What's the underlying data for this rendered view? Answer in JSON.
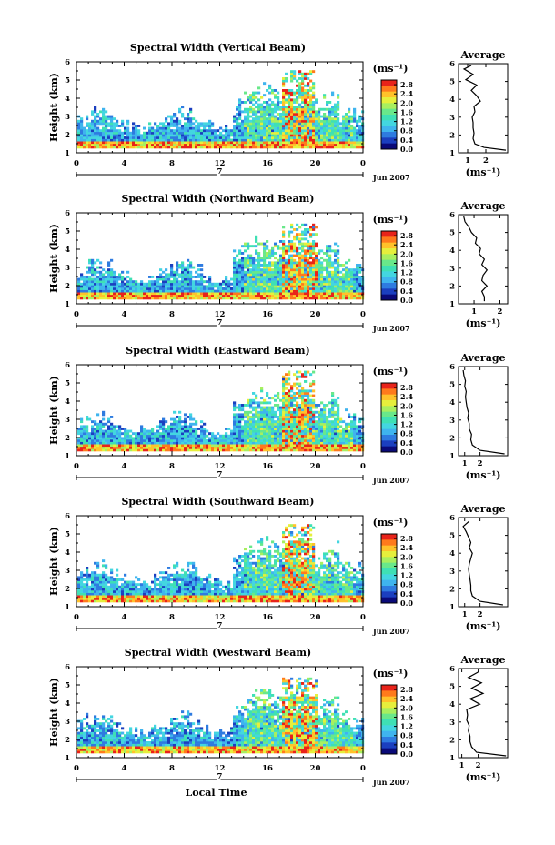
{
  "figure": {
    "xlabel": "Local Time",
    "ylabel": "Height (km)",
    "date_label": "Jun 2007",
    "day_label": "7",
    "colorbar_unit": "(ms⁻¹)",
    "avg_title": "Average",
    "avg_xlabel": "(ms⁻¹)",
    "colormap": [
      "#0a0a78",
      "#1b3fbf",
      "#2e7be0",
      "#3fb4ee",
      "#43d6e0",
      "#3fe0b4",
      "#69e88a",
      "#a8ef5f",
      "#e6ef3c",
      "#ffc22a",
      "#ff7a1c",
      "#e8231a"
    ]
  },
  "chart_data": [
    {
      "type": "heatmap",
      "title": "Spectral Width (Vertical Beam)",
      "xlabel": "",
      "ylabel": "Height (km)",
      "x_ticks": [
        "0",
        "4",
        "8",
        "12",
        "16",
        "20",
        "0"
      ],
      "xlim": [
        0,
        24
      ],
      "y_ticks": [
        "1",
        "2",
        "3",
        "4",
        "5",
        "6"
      ],
      "ylim": [
        1,
        6
      ],
      "colorbar": {
        "ticks": [
          "0.0",
          "0.4",
          "0.8",
          "1.2",
          "1.6",
          "2.0",
          "2.4",
          "2.8"
        ],
        "range": [
          0,
          3.0
        ]
      },
      "average": {
        "title": "Average",
        "xlabel": "(ms⁻¹)",
        "x_ticks": [
          "1",
          "2"
        ],
        "xlim": [
          0.5,
          3.2
        ],
        "y": [
          1.15,
          1.3,
          1.5,
          1.8,
          2.1,
          2.4,
          2.7,
          3.0,
          3.3,
          3.6,
          3.9,
          4.2,
          4.5,
          4.8,
          5.1,
          5.4,
          5.7,
          5.9
        ],
        "x": [
          3.1,
          1.9,
          1.4,
          1.3,
          1.35,
          1.3,
          1.3,
          1.25,
          1.4,
          1.35,
          1.7,
          1.5,
          1.2,
          1.5,
          0.9,
          1.3,
          0.8,
          1.2
        ]
      },
      "top_height": 5.5,
      "spike_x": 18.5
    },
    {
      "type": "heatmap",
      "title": "Spectral Width (Northward Beam)",
      "xlabel": "",
      "ylabel": "Height (km)",
      "x_ticks": [
        "0",
        "4",
        "8",
        "12",
        "16",
        "20",
        "0"
      ],
      "xlim": [
        0,
        24
      ],
      "y_ticks": [
        "1",
        "2",
        "3",
        "4",
        "5",
        "6"
      ],
      "ylim": [
        1,
        6
      ],
      "colorbar": {
        "ticks": [
          "0.0",
          "0.4",
          "0.8",
          "1.2",
          "1.6",
          "2.0",
          "2.4",
          "2.8"
        ],
        "range": [
          0,
          3.0
        ]
      },
      "average": {
        "title": "Average",
        "xlabel": "(ms⁻¹)",
        "x_ticks": [
          "1",
          "2"
        ],
        "xlim": [
          0.4,
          2.3
        ],
        "y": [
          1.15,
          1.4,
          1.7,
          2.0,
          2.3,
          2.6,
          2.9,
          3.2,
          3.5,
          3.8,
          4.1,
          4.4,
          4.7,
          5.0,
          5.3,
          5.6,
          5.9
        ],
        "x": [
          1.4,
          1.4,
          1.3,
          1.5,
          1.3,
          1.35,
          1.5,
          1.3,
          1.4,
          1.2,
          1.25,
          1.05,
          1.1,
          0.9,
          0.8,
          0.65,
          0.6
        ]
      },
      "top_height": 5.3,
      "spike_x": 18.6
    },
    {
      "type": "heatmap",
      "title": "Spectral Width (Eastward Beam)",
      "xlabel": "",
      "ylabel": "Height (km)",
      "x_ticks": [
        "0",
        "4",
        "8",
        "12",
        "16",
        "20",
        "0"
      ],
      "xlim": [
        0,
        24
      ],
      "y_ticks": [
        "1",
        "2",
        "3",
        "4",
        "5",
        "6"
      ],
      "ylim": [
        1,
        6
      ],
      "colorbar": {
        "ticks": [
          "0.0",
          "0.4",
          "0.8",
          "1.2",
          "1.6",
          "2.0",
          "2.4",
          "2.8"
        ],
        "range": [
          0,
          3.0
        ]
      },
      "average": {
        "title": "Average",
        "xlabel": "(ms⁻¹)",
        "x_ticks": [
          "1",
          "2"
        ],
        "xlim": [
          0.6,
          3.8
        ],
        "y": [
          1.1,
          1.3,
          1.6,
          1.9,
          2.2,
          2.5,
          2.8,
          3.1,
          3.4,
          3.7,
          4.0,
          4.3,
          4.6,
          4.9,
          5.2,
          5.5,
          5.8
        ],
        "x": [
          3.6,
          2.0,
          1.5,
          1.4,
          1.45,
          1.3,
          1.3,
          1.2,
          1.25,
          1.15,
          1.1,
          1.05,
          1.1,
          1.0,
          1.05,
          0.95,
          0.9
        ]
      },
      "top_height": 5.6,
      "spike_x": 18.5
    },
    {
      "type": "heatmap",
      "title": "Spectral Width (Southward Beam)",
      "xlabel": "",
      "ylabel": "Height (km)",
      "x_ticks": [
        "0",
        "4",
        "8",
        "12",
        "16",
        "20",
        "0"
      ],
      "xlim": [
        0,
        24
      ],
      "y_ticks": [
        "1",
        "2",
        "3",
        "4",
        "5",
        "6"
      ],
      "ylim": [
        1,
        6
      ],
      "colorbar": {
        "ticks": [
          "0.0",
          "0.4",
          "0.8",
          "1.2",
          "1.6",
          "2.0",
          "2.4",
          "2.8"
        ],
        "range": [
          0,
          3.0
        ]
      },
      "average": {
        "title": "Average",
        "xlabel": "(ms⁻¹)",
        "x_ticks": [
          "1",
          "2"
        ],
        "xlim": [
          0.6,
          3.8
        ],
        "y": [
          1.1,
          1.3,
          1.6,
          1.9,
          2.2,
          2.5,
          2.8,
          3.1,
          3.4,
          3.7,
          4.0,
          4.3,
          4.6,
          4.9,
          5.2,
          5.5,
          5.8
        ],
        "x": [
          3.5,
          2.0,
          1.5,
          1.4,
          1.4,
          1.35,
          1.3,
          1.25,
          1.3,
          1.4,
          1.5,
          1.3,
          1.4,
          1.25,
          1.1,
          0.9,
          1.3
        ]
      },
      "top_height": 5.5,
      "spike_x": 18.5
    },
    {
      "type": "heatmap",
      "title": "Spectral Width (Westward Beam)",
      "xlabel": "Local Time",
      "ylabel": "Height (km)",
      "x_ticks": [
        "0",
        "4",
        "8",
        "12",
        "16",
        "20",
        "0"
      ],
      "xlim": [
        0,
        24
      ],
      "y_ticks": [
        "1",
        "2",
        "3",
        "4",
        "5",
        "6"
      ],
      "ylim": [
        1,
        6
      ],
      "colorbar": {
        "ticks": [
          "0.0",
          "0.4",
          "0.8",
          "1.2",
          "1.6",
          "2.0",
          "2.4",
          "2.8"
        ],
        "range": [
          0,
          3.0
        ]
      },
      "average": {
        "title": "Average",
        "xlabel": "(ms⁻¹)",
        "x_ticks": [
          "1",
          "2"
        ],
        "xlim": [
          0.8,
          3.8
        ],
        "y": [
          1.1,
          1.3,
          1.6,
          1.9,
          2.2,
          2.5,
          2.8,
          3.1,
          3.4,
          3.7,
          4.0,
          4.3,
          4.6,
          4.9,
          5.2,
          5.5,
          5.8
        ],
        "x": [
          3.7,
          1.9,
          1.6,
          1.5,
          1.5,
          1.4,
          1.45,
          1.3,
          1.35,
          1.3,
          2.1,
          1.5,
          2.3,
          1.6,
          2.2,
          1.4,
          2.0
        ]
      },
      "top_height": 5.4,
      "spike_x": 18.6
    }
  ]
}
